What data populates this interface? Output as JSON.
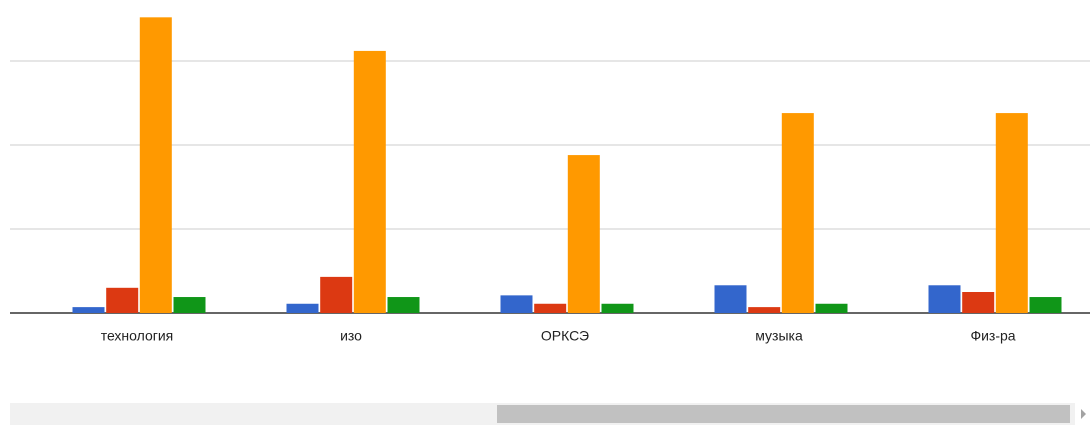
{
  "chart_data": {
    "type": "bar",
    "categories": [
      "технология",
      "изо",
      "ОРКСЭ",
      "музыка",
      "Физ-ра"
    ],
    "series": [
      {
        "color": "#3366cc",
        "values": [
          0.7,
          1.1,
          2.1,
          3.3,
          3.3
        ]
      },
      {
        "color": "#dc3912",
        "values": [
          3.0,
          4.3,
          1.1,
          0.7,
          2.5
        ]
      },
      {
        "color": "#ff9900",
        "values": [
          35.2,
          31.2,
          18.8,
          23.8,
          23.8
        ]
      },
      {
        "color": "#109618",
        "values": [
          1.9,
          1.9,
          1.1,
          1.1,
          1.9
        ]
      }
    ],
    "ylim": [
      0,
      37
    ],
    "yticks": [
      0,
      10,
      20,
      30
    ],
    "grid": true
  }
}
